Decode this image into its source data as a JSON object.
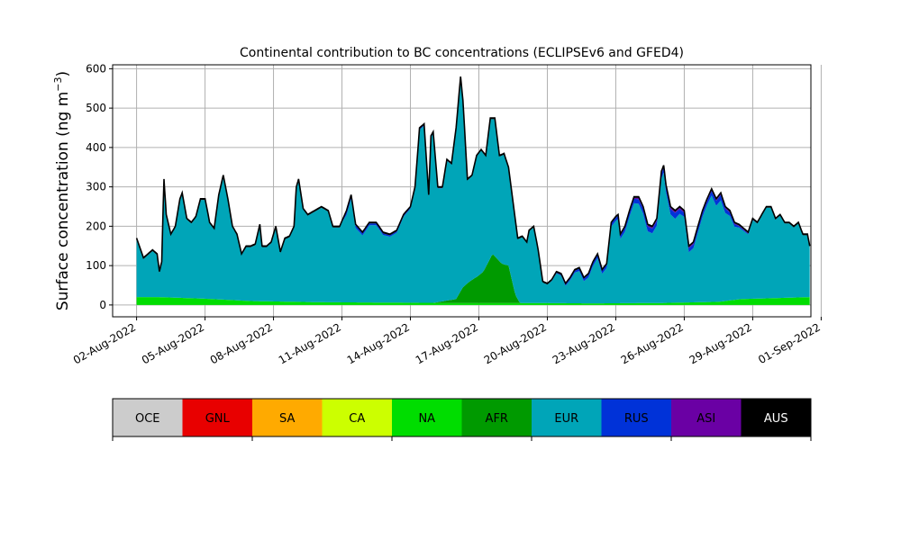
{
  "chart_data": {
    "type": "area",
    "stacked": true,
    "title": "Continental contribution to BC concentrations (ECLIPSEv6 and GFED4)",
    "xlabel": "",
    "ylabel_main": "Surface concentration (ng m",
    "ylabel_exp": "−3",
    "ylabel_close": ")",
    "ylim": [
      -30,
      610
    ],
    "yticks": [
      0,
      100,
      200,
      300,
      400,
      500,
      600
    ],
    "xlim_days": [
      -1.05,
      29.55
    ],
    "xtick_labels": [
      "02-Aug-2022",
      "05-Aug-2022",
      "08-Aug-2022",
      "11-Aug-2022",
      "14-Aug-2022",
      "17-Aug-2022",
      "20-Aug-2022",
      "23-Aug-2022",
      "26-Aug-2022",
      "29-Aug-2022",
      "01-Sep-2022"
    ],
    "xtick_days": [
      0,
      3,
      6,
      9,
      12,
      15,
      18,
      21,
      24,
      27,
      30
    ],
    "grid": true,
    "total": [
      [
        0.0,
        170
      ],
      [
        0.3,
        120
      ],
      [
        0.5,
        130
      ],
      [
        0.7,
        140
      ],
      [
        0.9,
        130
      ],
      [
        1.0,
        85
      ],
      [
        1.1,
        110
      ],
      [
        1.2,
        320
      ],
      [
        1.3,
        230
      ],
      [
        1.5,
        180
      ],
      [
        1.7,
        200
      ],
      [
        1.9,
        270
      ],
      [
        2.0,
        285
      ],
      [
        2.2,
        220
      ],
      [
        2.4,
        210
      ],
      [
        2.6,
        225
      ],
      [
        2.8,
        270
      ],
      [
        3.0,
        270
      ],
      [
        3.2,
        210
      ],
      [
        3.4,
        195
      ],
      [
        3.6,
        280
      ],
      [
        3.8,
        330
      ],
      [
        4.0,
        270
      ],
      [
        4.2,
        200
      ],
      [
        4.4,
        180
      ],
      [
        4.6,
        130
      ],
      [
        4.8,
        150
      ],
      [
        5.0,
        150
      ],
      [
        5.2,
        155
      ],
      [
        5.4,
        205
      ],
      [
        5.5,
        150
      ],
      [
        5.7,
        150
      ],
      [
        5.9,
        160
      ],
      [
        6.1,
        200
      ],
      [
        6.3,
        135
      ],
      [
        6.5,
        170
      ],
      [
        6.7,
        175
      ],
      [
        6.9,
        200
      ],
      [
        7.0,
        300
      ],
      [
        7.1,
        320
      ],
      [
        7.3,
        245
      ],
      [
        7.5,
        230
      ],
      [
        7.8,
        240
      ],
      [
        8.1,
        250
      ],
      [
        8.4,
        240
      ],
      [
        8.6,
        200
      ],
      [
        8.9,
        200
      ],
      [
        9.2,
        240
      ],
      [
        9.4,
        280
      ],
      [
        9.6,
        205
      ],
      [
        9.9,
        185
      ],
      [
        10.2,
        210
      ],
      [
        10.5,
        210
      ],
      [
        10.8,
        185
      ],
      [
        11.1,
        180
      ],
      [
        11.4,
        190
      ],
      [
        11.7,
        230
      ],
      [
        12.0,
        250
      ],
      [
        12.2,
        300
      ],
      [
        12.4,
        450
      ],
      [
        12.6,
        460
      ],
      [
        12.8,
        280
      ],
      [
        12.9,
        430
      ],
      [
        13.0,
        440
      ],
      [
        13.2,
        300
      ],
      [
        13.4,
        300
      ],
      [
        13.6,
        370
      ],
      [
        13.8,
        360
      ],
      [
        14.0,
        450
      ],
      [
        14.2,
        580
      ],
      [
        14.3,
        520
      ],
      [
        14.5,
        320
      ],
      [
        14.7,
        330
      ],
      [
        14.9,
        380
      ],
      [
        15.1,
        395
      ],
      [
        15.3,
        380
      ],
      [
        15.5,
        475
      ],
      [
        15.7,
        475
      ],
      [
        15.9,
        380
      ],
      [
        16.1,
        385
      ],
      [
        16.3,
        350
      ],
      [
        16.5,
        260
      ],
      [
        16.7,
        170
      ],
      [
        16.9,
        175
      ],
      [
        17.1,
        160
      ],
      [
        17.2,
        190
      ],
      [
        17.4,
        200
      ],
      [
        17.6,
        140
      ],
      [
        17.8,
        60
      ],
      [
        18.0,
        55
      ],
      [
        18.2,
        65
      ],
      [
        18.4,
        85
      ],
      [
        18.6,
        80
      ],
      [
        18.8,
        55
      ],
      [
        19.0,
        70
      ],
      [
        19.2,
        90
      ],
      [
        19.4,
        95
      ],
      [
        19.6,
        70
      ],
      [
        19.8,
        80
      ],
      [
        20.0,
        110
      ],
      [
        20.2,
        130
      ],
      [
        20.4,
        90
      ],
      [
        20.6,
        105
      ],
      [
        20.8,
        210
      ],
      [
        21.0,
        225
      ],
      [
        21.1,
        230
      ],
      [
        21.2,
        180
      ],
      [
        21.4,
        200
      ],
      [
        21.6,
        240
      ],
      [
        21.8,
        275
      ],
      [
        22.0,
        275
      ],
      [
        22.2,
        250
      ],
      [
        22.4,
        205
      ],
      [
        22.6,
        200
      ],
      [
        22.8,
        220
      ],
      [
        23.0,
        340
      ],
      [
        23.1,
        355
      ],
      [
        23.2,
        305
      ],
      [
        23.4,
        250
      ],
      [
        23.6,
        240
      ],
      [
        23.8,
        250
      ],
      [
        24.0,
        240
      ],
      [
        24.2,
        150
      ],
      [
        24.4,
        160
      ],
      [
        24.6,
        200
      ],
      [
        24.8,
        240
      ],
      [
        25.0,
        270
      ],
      [
        25.2,
        295
      ],
      [
        25.4,
        270
      ],
      [
        25.6,
        285
      ],
      [
        25.8,
        250
      ],
      [
        26.0,
        240
      ],
      [
        26.2,
        210
      ],
      [
        26.4,
        205
      ],
      [
        26.6,
        195
      ],
      [
        26.8,
        185
      ],
      [
        27.0,
        220
      ],
      [
        27.2,
        210
      ],
      [
        27.4,
        230
      ],
      [
        27.6,
        250
      ],
      [
        27.8,
        250
      ],
      [
        28.0,
        220
      ],
      [
        28.2,
        230
      ],
      [
        28.4,
        210
      ],
      [
        28.6,
        210
      ],
      [
        28.8,
        200
      ],
      [
        29.0,
        210
      ],
      [
        29.2,
        180
      ],
      [
        29.4,
        180
      ],
      [
        29.5,
        150
      ]
    ],
    "na_base": [
      [
        0.0,
        20
      ],
      [
        1.0,
        20
      ],
      [
        3.0,
        16
      ],
      [
        5.0,
        10
      ],
      [
        8.0,
        7
      ],
      [
        11.0,
        6
      ],
      [
        14.0,
        5
      ],
      [
        17.0,
        5
      ],
      [
        20.0,
        4
      ],
      [
        23.0,
        5
      ],
      [
        25.5,
        8
      ],
      [
        26.5,
        15
      ],
      [
        29.5,
        20
      ]
    ],
    "afr_extra": [
      [
        0.0,
        0
      ],
      [
        13.0,
        0
      ],
      [
        14.0,
        10
      ],
      [
        14.3,
        40
      ],
      [
        14.6,
        55
      ],
      [
        15.0,
        70
      ],
      [
        15.2,
        80
      ],
      [
        15.6,
        125
      ],
      [
        16.0,
        100
      ],
      [
        16.3,
        95
      ],
      [
        16.6,
        20
      ],
      [
        16.8,
        0
      ],
      [
        29.5,
        0
      ]
    ],
    "rus_thickness": [
      [
        0.0,
        0
      ],
      [
        9.0,
        0
      ],
      [
        9.2,
        8
      ],
      [
        10.0,
        5
      ],
      [
        14.0,
        0
      ],
      [
        18.0,
        0
      ],
      [
        19.0,
        4
      ],
      [
        20.0,
        8
      ],
      [
        21.0,
        8
      ],
      [
        22.0,
        12
      ],
      [
        23.0,
        12
      ],
      [
        23.6,
        15
      ],
      [
        24.0,
        10
      ],
      [
        25.0,
        10
      ],
      [
        25.6,
        14
      ],
      [
        26.4,
        4
      ],
      [
        27.2,
        0
      ],
      [
        29.5,
        0
      ]
    ],
    "asi_thickness": [
      [
        0.0,
        0
      ],
      [
        21.0,
        0
      ],
      [
        22.0,
        3
      ],
      [
        24.0,
        3
      ],
      [
        26.0,
        2
      ],
      [
        27.2,
        0
      ],
      [
        29.5,
        0
      ]
    ],
    "aus_thickness": 3,
    "legend": [
      {
        "code": "OCE",
        "color": "#cccccc",
        "text_color": "#000000"
      },
      {
        "code": "GNL",
        "color": "#e80000",
        "text_color": "#000000"
      },
      {
        "code": "SA",
        "color": "#ffaa00",
        "text_color": "#000000"
      },
      {
        "code": "CA",
        "color": "#ccff00",
        "text_color": "#000000"
      },
      {
        "code": "NA",
        "color": "#00dd00",
        "text_color": "#000000"
      },
      {
        "code": "AFR",
        "color": "#009a00",
        "text_color": "#000000"
      },
      {
        "code": "EUR",
        "color": "#00a5b8",
        "text_color": "#000000"
      },
      {
        "code": "RUS",
        "color": "#0032d8",
        "text_color": "#000000"
      },
      {
        "code": "ASI",
        "color": "#6a00a4",
        "text_color": "#000000"
      },
      {
        "code": "AUS",
        "color": "#000000",
        "text_color": "#ffffff"
      }
    ]
  }
}
